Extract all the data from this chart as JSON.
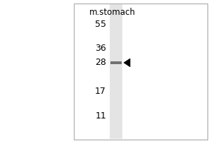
{
  "bg_color": "#ffffff",
  "title": "m.stomach",
  "markers": [
    55,
    36,
    28,
    17,
    11
  ],
  "band_mw": 28,
  "fig_width": 3.0,
  "fig_height": 2.0,
  "dpi": 100,
  "panel_bg": "#ffffff",
  "lane_color": "#e0e0e0",
  "band_color": "#555555",
  "border_color": "#aaaaaa",
  "label_fontsize": 9,
  "title_fontsize": 8.5
}
